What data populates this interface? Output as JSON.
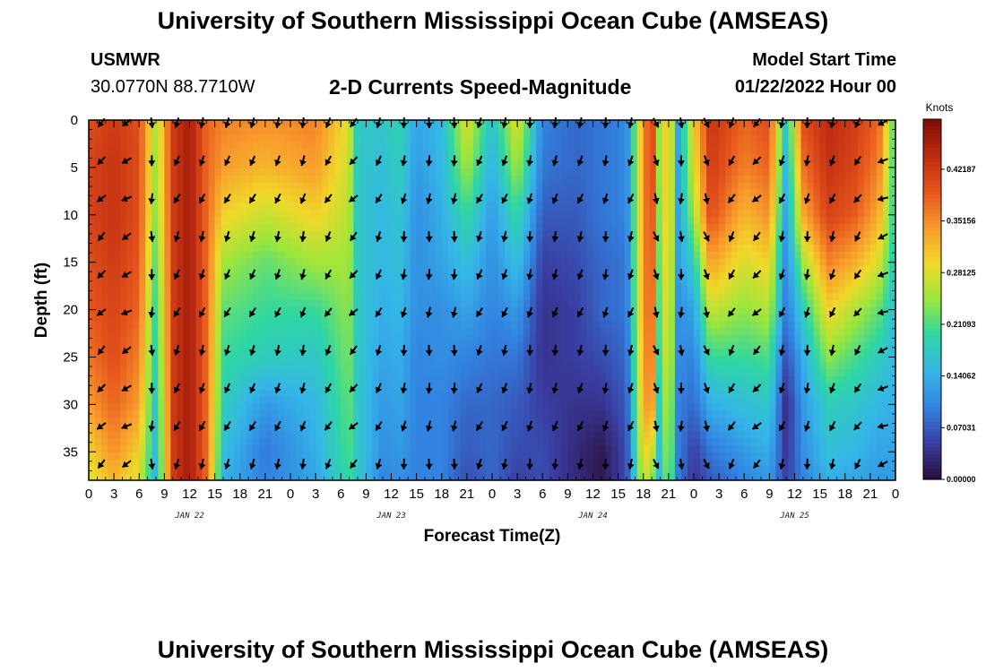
{
  "header": {
    "title": "University of Southern Mississippi Ocean Cube (AMSEAS)",
    "station": "USMWR",
    "coords": "30.0770N  88.7710W",
    "plot_title": "2-D Currents Speed-Magnitude",
    "start_label": "Model Start Time",
    "start_value": "01/22/2022 Hour 00"
  },
  "footer": {
    "title": "University of Southern Mississippi Ocean Cube (AMSEAS)"
  },
  "chart_data": {
    "type": "heatmap",
    "title": "2-D Currents Speed-Magnitude",
    "xlabel": "Forecast Time(Z)",
    "ylabel": "Depth (ft)",
    "x_ticks": [
      "0",
      "3",
      "6",
      "9",
      "12",
      "15",
      "18",
      "21",
      "0",
      "3",
      "6",
      "9",
      "12",
      "15",
      "18",
      "21",
      "0",
      "3",
      "6",
      "9",
      "12",
      "15",
      "18",
      "21",
      "0",
      "3",
      "6",
      "9",
      "12",
      "15",
      "18",
      "21",
      "0"
    ],
    "x_range_hours": [
      0,
      96
    ],
    "date_labels": [
      {
        "label": "JAN 22",
        "hour": 12
      },
      {
        "label": "JAN 23",
        "hour": 36
      },
      {
        "label": "JAN 24",
        "hour": 60
      },
      {
        "label": "JAN 25",
        "hour": 84
      }
    ],
    "y_ticks": [
      0,
      5,
      10,
      15,
      20,
      25,
      30,
      35
    ],
    "y_range_ft": [
      0,
      38
    ],
    "colorbar": {
      "unit": "Knots",
      "ticks": [
        "0.42187",
        "0.35156",
        "0.28125",
        "0.21093",
        "0.14062",
        "0.07031",
        "0.00000"
      ],
      "min": 0.0,
      "max": 0.49,
      "colors": [
        "#2a0f3c",
        "#3a3ca0",
        "#3282e0",
        "#35b6e8",
        "#2ed6a4",
        "#9be63c",
        "#f0d92a",
        "#f89a2c",
        "#e5541c",
        "#bb2a10",
        "#7a0e05"
      ]
    },
    "speed_profiles": {
      "depths_ft": [
        0,
        5,
        10,
        15,
        20,
        25,
        30,
        35,
        38
      ],
      "columns": [
        {
          "hour": 0,
          "values": [
            0.4,
            0.41,
            0.41,
            0.4,
            0.39,
            0.37,
            0.34,
            0.3,
            0.28
          ]
        },
        {
          "hour": 3,
          "values": [
            0.42,
            0.43,
            0.43,
            0.42,
            0.41,
            0.4,
            0.38,
            0.35,
            0.32
          ]
        },
        {
          "hour": 6,
          "values": [
            0.4,
            0.4,
            0.4,
            0.39,
            0.38,
            0.36,
            0.34,
            0.3,
            0.28
          ]
        },
        {
          "hour": 8,
          "values": [
            0.25,
            0.24,
            0.23,
            0.21,
            0.19,
            0.18,
            0.16,
            0.15,
            0.14
          ]
        },
        {
          "hour": 10,
          "values": [
            0.42,
            0.42,
            0.42,
            0.42,
            0.42,
            0.42,
            0.42,
            0.42,
            0.42
          ]
        },
        {
          "hour": 12,
          "values": [
            0.46,
            0.46,
            0.46,
            0.46,
            0.46,
            0.46,
            0.46,
            0.46,
            0.46
          ]
        },
        {
          "hour": 14,
          "values": [
            0.38,
            0.38,
            0.38,
            0.38,
            0.38,
            0.38,
            0.38,
            0.38,
            0.38
          ]
        },
        {
          "hour": 16,
          "values": [
            0.36,
            0.34,
            0.3,
            0.25,
            0.22,
            0.2,
            0.18,
            0.16,
            0.14
          ]
        },
        {
          "hour": 21,
          "values": [
            0.35,
            0.32,
            0.27,
            0.22,
            0.2,
            0.18,
            0.12,
            0.09,
            0.1
          ]
        },
        {
          "hour": 27,
          "values": [
            0.36,
            0.34,
            0.3,
            0.25,
            0.2,
            0.17,
            0.15,
            0.14,
            0.13
          ]
        },
        {
          "hour": 31,
          "values": [
            0.28,
            0.27,
            0.26,
            0.25,
            0.24,
            0.23,
            0.22,
            0.21,
            0.2
          ]
        },
        {
          "hour": 32,
          "values": [
            0.17,
            0.17,
            0.17,
            0.17,
            0.17,
            0.17,
            0.17,
            0.17,
            0.17
          ]
        },
        {
          "hour": 35,
          "values": [
            0.17,
            0.16,
            0.15,
            0.15,
            0.14,
            0.13,
            0.12,
            0.11,
            0.1
          ]
        },
        {
          "hour": 37,
          "values": [
            0.19,
            0.18,
            0.17,
            0.16,
            0.15,
            0.14,
            0.13,
            0.12,
            0.11
          ]
        },
        {
          "hour": 39,
          "values": [
            0.13,
            0.12,
            0.11,
            0.11,
            0.11,
            0.1,
            0.1,
            0.1,
            0.1
          ]
        },
        {
          "hour": 42,
          "values": [
            0.15,
            0.15,
            0.14,
            0.13,
            0.11,
            0.11,
            0.1,
            0.1,
            0.1
          ]
        },
        {
          "hour": 45,
          "values": [
            0.29,
            0.25,
            0.2,
            0.16,
            0.13,
            0.1,
            0.08,
            0.07,
            0.06
          ]
        },
        {
          "hour": 48,
          "values": [
            0.16,
            0.14,
            0.12,
            0.11,
            0.1,
            0.09,
            0.08,
            0.08,
            0.08
          ]
        },
        {
          "hour": 51,
          "values": [
            0.29,
            0.25,
            0.2,
            0.16,
            0.12,
            0.09,
            0.07,
            0.06,
            0.05
          ]
        },
        {
          "hour": 54,
          "values": [
            0.1,
            0.09,
            0.07,
            0.05,
            0.04,
            0.04,
            0.05,
            0.06,
            0.06
          ]
        },
        {
          "hour": 58,
          "values": [
            0.08,
            0.08,
            0.07,
            0.06,
            0.05,
            0.05,
            0.04,
            0.03,
            0.03
          ]
        },
        {
          "hour": 61,
          "values": [
            0.09,
            0.09,
            0.09,
            0.08,
            0.08,
            0.06,
            0.04,
            0.01,
            0.01
          ]
        },
        {
          "hour": 64,
          "values": [
            0.1,
            0.1,
            0.1,
            0.09,
            0.09,
            0.08,
            0.07,
            0.06,
            0.06
          ]
        },
        {
          "hour": 66,
          "values": [
            0.35,
            0.35,
            0.35,
            0.35,
            0.35,
            0.34,
            0.33,
            0.3,
            0.28
          ]
        },
        {
          "hour": 67,
          "values": [
            0.42,
            0.42,
            0.41,
            0.4,
            0.39,
            0.38,
            0.36,
            0.28,
            0.24
          ]
        },
        {
          "hour": 68,
          "values": [
            0.22,
            0.22,
            0.21,
            0.2,
            0.19,
            0.18,
            0.16,
            0.15,
            0.14
          ]
        },
        {
          "hour": 69,
          "values": [
            0.35,
            0.35,
            0.35,
            0.34,
            0.33,
            0.32,
            0.3,
            0.28,
            0.26
          ]
        },
        {
          "hour": 70,
          "values": [
            0.12,
            0.12,
            0.12,
            0.12,
            0.11,
            0.11,
            0.1,
            0.1,
            0.1
          ]
        },
        {
          "hour": 72,
          "values": [
            0.3,
            0.28,
            0.25,
            0.18,
            0.13,
            0.1,
            0.08,
            0.05,
            0.04
          ]
        },
        {
          "hour": 74,
          "values": [
            0.43,
            0.42,
            0.4,
            0.34,
            0.27,
            0.2,
            0.14,
            0.09,
            0.07
          ]
        },
        {
          "hour": 78,
          "values": [
            0.38,
            0.36,
            0.32,
            0.28,
            0.24,
            0.2,
            0.16,
            0.12,
            0.1
          ]
        },
        {
          "hour": 81,
          "values": [
            0.4,
            0.38,
            0.35,
            0.3,
            0.26,
            0.21,
            0.17,
            0.14,
            0.12
          ]
        },
        {
          "hour": 83,
          "values": [
            0.16,
            0.14,
            0.12,
            0.1,
            0.09,
            0.06,
            0.03,
            0.04,
            0.05
          ]
        },
        {
          "hour": 85,
          "values": [
            0.4,
            0.37,
            0.33,
            0.25,
            0.18,
            0.14,
            0.12,
            0.11,
            0.1
          ]
        },
        {
          "hour": 88,
          "values": [
            0.44,
            0.43,
            0.41,
            0.36,
            0.3,
            0.24,
            0.18,
            0.16,
            0.14
          ]
        },
        {
          "hour": 91,
          "values": [
            0.42,
            0.41,
            0.39,
            0.33,
            0.26,
            0.21,
            0.17,
            0.15,
            0.13
          ]
        },
        {
          "hour": 94,
          "values": [
            0.38,
            0.36,
            0.33,
            0.28,
            0.22,
            0.18,
            0.15,
            0.13,
            0.12
          ]
        },
        {
          "hour": 96,
          "values": [
            0.2,
            0.19,
            0.18,
            0.17,
            0.16,
            0.15,
            0.14,
            0.13,
            0.12
          ]
        }
      ]
    },
    "vectors": {
      "hours": [
        1.5,
        4.5,
        7.5,
        10.5,
        13.5,
        16.5,
        19.5,
        22.5,
        25.5,
        28.5,
        31.5,
        34.5,
        37.5,
        40.5,
        43.5,
        46.5,
        49.5,
        52.5,
        55.5,
        58.5,
        61.5,
        64.5,
        67.5,
        70.5,
        73.5,
        76.5,
        79.5,
        82.5,
        85.5,
        88.5,
        91.5,
        94.5
      ],
      "depths_ft": [
        0,
        4,
        8,
        12,
        16,
        20,
        24,
        28,
        32,
        36
      ],
      "directions_deg": [
        225,
        240,
        180,
        205,
        200,
        205,
        205,
        200,
        195,
        210,
        225,
        205,
        190,
        185,
        185,
        205,
        200,
        190,
        195,
        200,
        190,
        200,
        160,
        180,
        160,
        210,
        225,
        200,
        190,
        200,
        215,
        250
      ]
    }
  }
}
